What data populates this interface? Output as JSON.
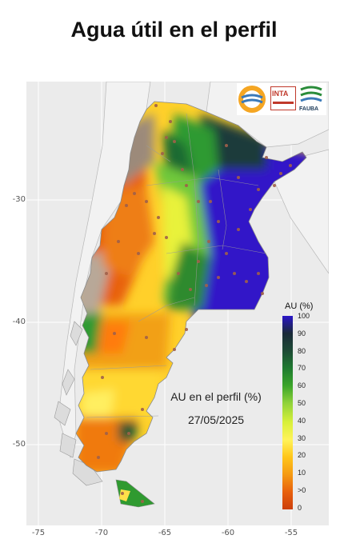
{
  "title": "Agua útil en el perfil",
  "annotation": {
    "line1": "AU en el perfil (%)",
    "line2": "27/05/2025"
  },
  "legend": {
    "title": "AU (%)",
    "labels": [
      "100",
      "90",
      "80",
      "70",
      "60",
      "50",
      "40",
      "30",
      "20",
      "10",
      ">0",
      "0"
    ],
    "colors": [
      "#2a15c8",
      "#1a2a38",
      "#1d4a35",
      "#1e7a30",
      "#3aa42a",
      "#8fd23a",
      "#d8f03a",
      "#fff35a",
      "#ffc61a",
      "#f59a12",
      "#e8600d",
      "#cc3f0c"
    ]
  },
  "axes": {
    "y_ticks": [
      "-30",
      "-40",
      "-50"
    ],
    "x_ticks": [
      "-75",
      "-70",
      "-65",
      "-60",
      "-55"
    ]
  },
  "logos": {
    "inta": "INTA",
    "fauba": "FAUBA"
  }
}
